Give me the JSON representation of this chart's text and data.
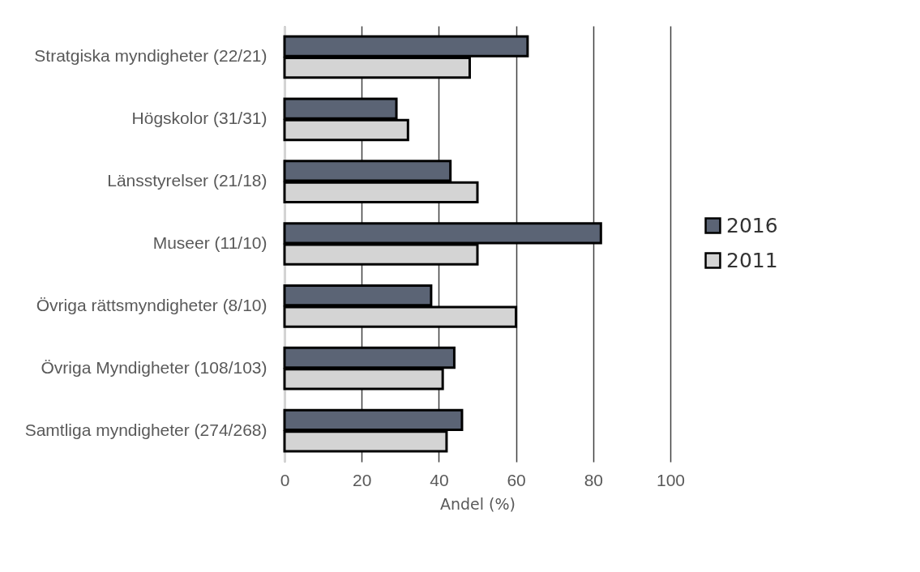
{
  "chart_data": {
    "type": "bar",
    "orientation": "horizontal",
    "xlabel": "Andel (%)",
    "categories": [
      "Stratgiska myndigheter (22/21)",
      "Högskolor (31/31)",
      "Länsstyrelser (21/18)",
      "Museer (11/10)",
      "Övriga rättsmyndigheter (8/10)",
      "Övriga Myndigheter (108/103)",
      "Samtliga myndigheter (274/268)"
    ],
    "series": [
      {
        "name": "2016",
        "color": "#5b6475",
        "values": [
          63,
          29,
          43,
          82,
          38,
          44,
          46
        ]
      },
      {
        "name": "2011",
        "color": "#d4d4d4",
        "values": [
          48,
          32,
          50,
          50,
          60,
          41,
          42
        ]
      }
    ],
    "xlim": [
      0,
      100
    ],
    "xticks": [
      0,
      20,
      40,
      60,
      80,
      100
    ],
    "grid": "x",
    "legend": "right"
  }
}
